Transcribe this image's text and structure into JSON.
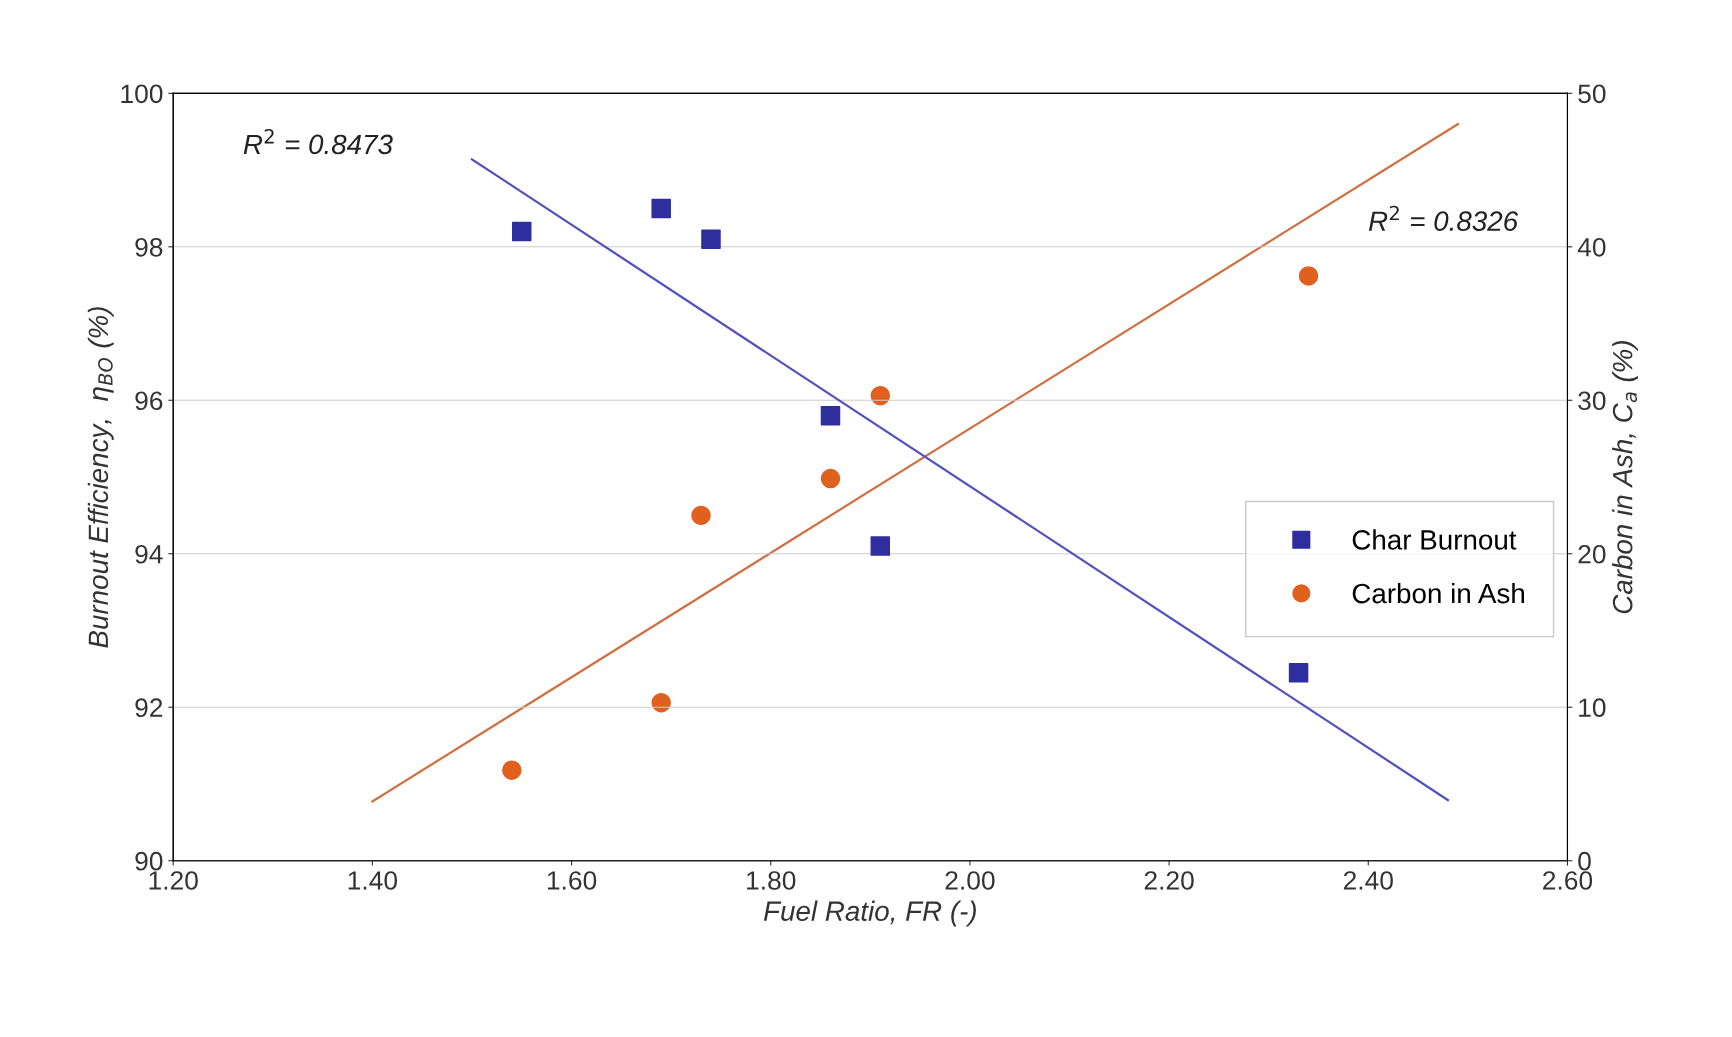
{
  "chart_data": {
    "type": "scatter",
    "xlabel": "Fuel Ratio, FR (-)",
    "ylabel": "Burnout Efficiency,  η$_{BO}$ (%)",
    "y2label": "Carbon in Ash, C$_{a}$ (%)",
    "xlim": [
      1.2,
      2.6
    ],
    "xticks": [
      {
        "value": 1.2,
        "label": "1.20"
      },
      {
        "value": 1.4,
        "label": "1.40"
      },
      {
        "value": 1.6,
        "label": "1.60"
      },
      {
        "value": 1.8,
        "label": "1.80"
      },
      {
        "value": 2.0,
        "label": "2.00"
      },
      {
        "value": 2.2,
        "label": "2.20"
      },
      {
        "value": 2.4,
        "label": "2.40"
      },
      {
        "value": 2.6,
        "label": "2.60"
      }
    ],
    "ylim": [
      90,
      100
    ],
    "yticks": [
      90,
      92,
      94,
      96,
      98,
      100
    ],
    "y2lim": [
      0,
      50
    ],
    "y2ticks": [
      0,
      10,
      20,
      30,
      40,
      50
    ],
    "grid": "y",
    "legend": "right",
    "series": [
      {
        "name": "Char Burnout",
        "marker": "square",
        "color": "#2e2e9e",
        "x": [
          1.55,
          1.69,
          1.74,
          1.86,
          1.91,
          2.33
        ],
        "values": [
          98.2,
          98.5,
          98.1,
          95.8,
          94.1,
          92.45
        ]
      },
      {
        "name": "Carbon in Ash",
        "marker": "circle",
        "axis": "y2",
        "color": "#e0601e",
        "x": [
          1.54,
          1.69,
          1.73,
          1.86,
          1.91,
          2.34
        ],
        "values": [
          5.9,
          10.3,
          22.5,
          24.9,
          30.3,
          38.1
        ]
      },
      {
        "type": "line",
        "marker": "none",
        "color": "#5050c0",
        "x": [
          1.5,
          2.48
        ],
        "values": [
          99.14,
          90.79
        ]
      },
      {
        "type": "line",
        "marker": "none",
        "axis": "y2",
        "color": "#d07040",
        "x": [
          1.4,
          2.49
        ],
        "values": [
          3.86,
          48.0
        ]
      }
    ],
    "annotations": [
      "R$^{2}$ = 0.8473",
      "R$^{2}$ = 0.8326"
    ]
  }
}
